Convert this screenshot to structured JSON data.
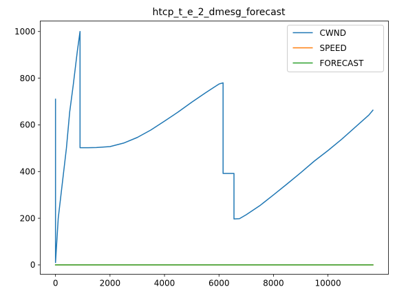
{
  "chart_data": {
    "type": "line",
    "title": "htcp_t_e_2_dmesg_forecast",
    "xlabel": "",
    "ylabel": "",
    "xlim": [
      -560,
      12220
    ],
    "ylim": [
      -40,
      1045
    ],
    "xticks": [
      0,
      2000,
      4000,
      6000,
      8000,
      10000
    ],
    "xtick_labels": [
      "0",
      "2000",
      "4000",
      "6000",
      "8000",
      "10000"
    ],
    "yticks": [
      0,
      200,
      400,
      600,
      800,
      1000
    ],
    "ytick_labels": [
      "0",
      "200",
      "400",
      "600",
      "800",
      "1000"
    ],
    "grid": false,
    "legend_position": "top-right",
    "series": [
      {
        "name": "CWND",
        "color": "#1f77b4",
        "x": [
          0,
          0,
          100,
          250,
          400,
          520,
          650,
          800,
          900,
          900,
          1200,
          1500,
          2000,
          2500,
          3000,
          3500,
          4000,
          4500,
          5000,
          5500,
          6000,
          6150,
          6150,
          6550,
          6550,
          6750,
          7000,
          7500,
          8000,
          8500,
          9000,
          9500,
          10000,
          10500,
          11000,
          11500,
          11650
        ],
        "y": [
          710,
          10,
          200,
          350,
          500,
          655,
          770,
          915,
          1000,
          502,
          502,
          503,
          507,
          522,
          546,
          578,
          616,
          655,
          697,
          737,
          775,
          780,
          392,
          392,
          197,
          198,
          215,
          254,
          300,
          347,
          395,
          445,
          490,
          538,
          590,
          642,
          663
        ]
      },
      {
        "name": "SPEED",
        "color": "#ff7f0e",
        "x": [
          0,
          11650
        ],
        "y": [
          0,
          0
        ]
      },
      {
        "name": "FORECAST",
        "color": "#2ca02c",
        "x": [
          0,
          11650
        ],
        "y": [
          0,
          0
        ]
      }
    ]
  }
}
